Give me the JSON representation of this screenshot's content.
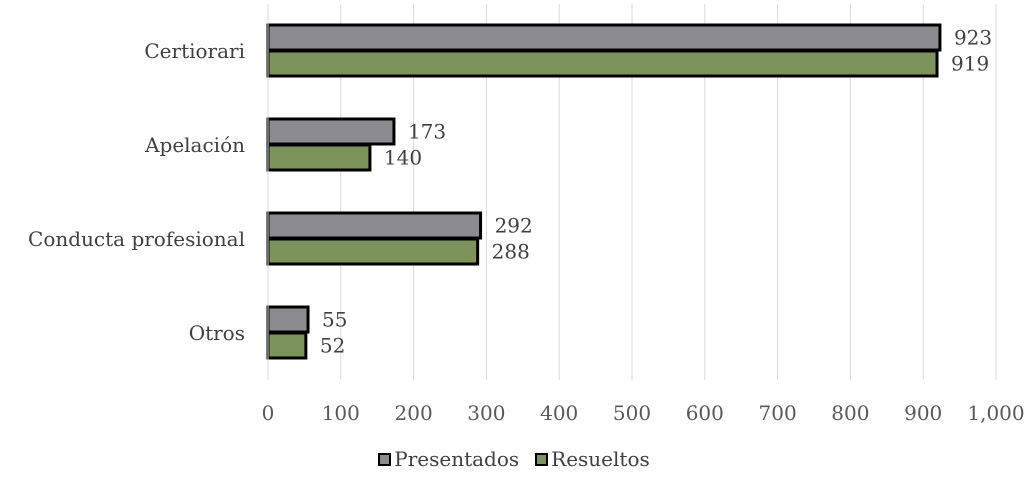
{
  "chart_data": {
    "type": "bar",
    "orientation": "horizontal",
    "categories": [
      "Certiorari",
      "Apelación",
      "Conducta profesional",
      "Otros"
    ],
    "series": [
      {
        "name": "Presentados",
        "color": "#8c8b91",
        "values": [
          923,
          173,
          292,
          55
        ]
      },
      {
        "name": "Resueltos",
        "color": "#7d935c",
        "values": [
          919,
          140,
          288,
          52
        ]
      }
    ],
    "xlim": [
      0,
      1000
    ],
    "x_ticks": [
      0,
      100,
      200,
      300,
      400,
      500,
      600,
      700,
      800,
      900,
      1000
    ],
    "x_tick_labels": [
      "0",
      "100",
      "200",
      "300",
      "400",
      "500",
      "600",
      "700",
      "800",
      "900",
      "1,000"
    ],
    "grid": "vertical",
    "legend_position": "bottom",
    "title": "",
    "xlabel": "",
    "ylabel": ""
  }
}
